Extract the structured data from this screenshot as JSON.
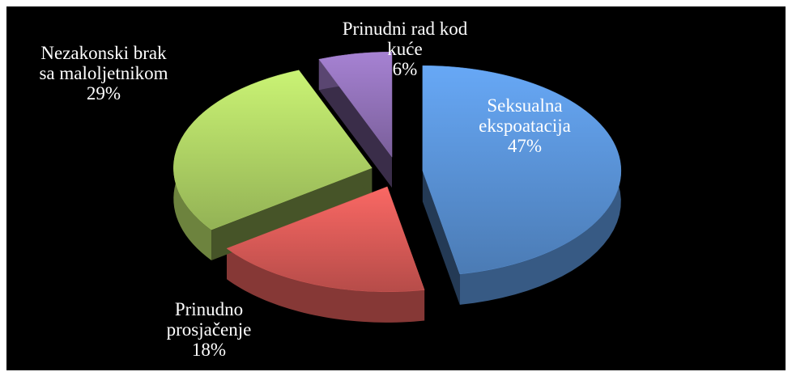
{
  "chart_data": {
    "type": "pie",
    "categories": [
      "Seksualna ekspoatacija",
      "Prinudno prosjačenje",
      "Nezakonski brak sa maloljetnikom",
      "Prinudni rad kod kuće"
    ],
    "values": [
      47,
      18,
      29,
      6
    ],
    "value_labels": [
      "47%",
      "18%",
      "29%",
      "6%"
    ],
    "colors": [
      "#4f81bd",
      "#c0504d",
      "#9bbb59",
      "#8064a2"
    ]
  }
}
